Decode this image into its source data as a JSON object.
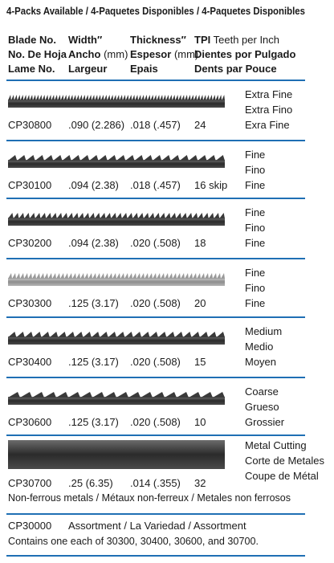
{
  "title": "4-Packs Available / 4-Paquetes Disponibles / 4-Paquetes Disponibles",
  "header": {
    "blade": [
      "Blade No.",
      "No. De Hoja",
      "Lame No."
    ],
    "width": {
      "line1": "Width″",
      "line2": "Ancho",
      "unit": "(mm)",
      "line3": "Largeur"
    },
    "thickness": {
      "line1": "Thickness″",
      "line2": "Espesor",
      "unit": "(mm)",
      "line3": "Epais"
    },
    "tpi": {
      "abbr": "TPI",
      "line1": "Teeth per Inch",
      "line2": "Dientes por Pulgado",
      "line3": "Dents par Pouce"
    }
  },
  "rows": [
    {
      "blade": "CP30800",
      "width": ".090 (2.286)",
      "thickness": ".018 (.457)",
      "tpi": "24",
      "description": [
        "Extra Fine",
        "Extra Fino",
        "Exra Fine"
      ]
    },
    {
      "blade": "CP30100",
      "width": ".094 (2.38)",
      "thickness": ".018 (.457)",
      "tpi": "16 skip",
      "description": [
        "Fine",
        "Fino",
        "Fine"
      ]
    },
    {
      "blade": "CP30200",
      "width": ".094 (2.38)",
      "thickness": ".020 (.508)",
      "tpi": "18",
      "description": [
        "Fine",
        "Fino",
        "Fine"
      ]
    },
    {
      "blade": "CP30300",
      "width": ".125 (3.17)",
      "thickness": ".020 (.508)",
      "tpi": "20",
      "description": [
        "Fine",
        "Fino",
        "Fine"
      ]
    },
    {
      "blade": "CP30400",
      "width": ".125 (3.17)",
      "thickness": ".020 (.508)",
      "tpi": "15",
      "description": [
        "Medium",
        "Medio",
        "Moyen"
      ]
    },
    {
      "blade": "CP30600",
      "width": ".125 (3.17)",
      "thickness": ".020 (.508)",
      "tpi": "10",
      "description": [
        "Coarse",
        "Grueso",
        "Grossier"
      ]
    },
    {
      "blade": "CP30700",
      "width": ".25 (6.35)",
      "thickness": ".014 (.355)",
      "tpi": "32",
      "description": [
        "Metal Cutting",
        "Corte de Metales",
        "Coupe de Métal"
      ],
      "note": "Non-ferrous metals / Métaux non-ferreux / Metales non ferrosos"
    }
  ],
  "assortment": {
    "blade": "CP30000",
    "name": "Assortment / La Variedad / Assortment",
    "contents": "Contains one each of 30300, 30400, 30600, and 30700."
  }
}
